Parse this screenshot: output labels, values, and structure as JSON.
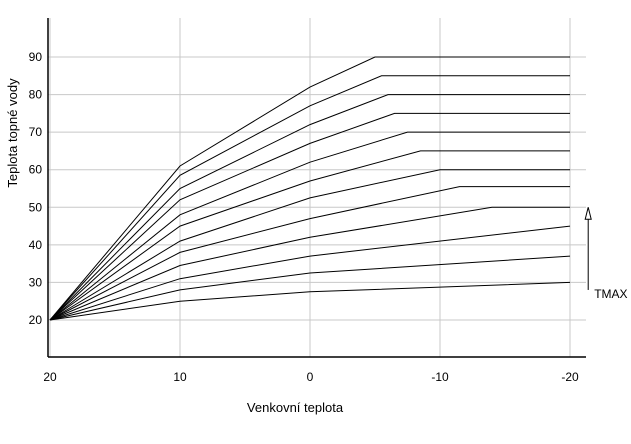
{
  "chart_data": {
    "type": "line",
    "xlabel": "Venkovní teplota",
    "ylabel": "Teplota topné vody",
    "xlim": [
      20,
      -22
    ],
    "ylim": [
      20,
      90
    ],
    "x_ticks": [
      20,
      10,
      0,
      -10,
      -20
    ],
    "y_ticks": [
      20,
      30,
      40,
      50,
      60,
      70,
      80,
      90
    ],
    "x_tick_labels": [
      "20",
      "10",
      "0",
      "-10",
      "-20"
    ],
    "y_tick_labels": [
      "20",
      "30",
      "40",
      "50",
      "60",
      "70",
      "80",
      "90"
    ],
    "grid": "both",
    "line_color": "#000000",
    "grid_color": "#c8c8c8",
    "annotation": {
      "text": "TMAX",
      "arrow_x": -21.4,
      "arrow_from": 28,
      "arrow_to": 50
    },
    "series": [
      {
        "values": [
          [
            20,
            20
          ],
          [
            10,
            25
          ],
          [
            0,
            27.5
          ],
          [
            -20,
            30
          ]
        ]
      },
      {
        "values": [
          [
            20,
            20
          ],
          [
            10,
            28
          ],
          [
            0,
            32.5
          ],
          [
            -20,
            37
          ]
        ]
      },
      {
        "values": [
          [
            20,
            20
          ],
          [
            10,
            31
          ],
          [
            0,
            37
          ],
          [
            -20,
            45
          ]
        ]
      },
      {
        "values": [
          [
            20,
            20
          ],
          [
            10,
            34.5
          ],
          [
            0,
            42
          ],
          [
            -14,
            50
          ],
          [
            -20,
            50
          ]
        ]
      },
      {
        "values": [
          [
            20,
            20
          ],
          [
            10,
            38
          ],
          [
            0,
            47
          ],
          [
            -11.5,
            55.5
          ],
          [
            -20,
            55.5
          ]
        ]
      },
      {
        "values": [
          [
            20,
            20
          ],
          [
            10,
            41
          ],
          [
            0,
            52.5
          ],
          [
            -10,
            60
          ],
          [
            -20,
            60
          ]
        ]
      },
      {
        "values": [
          [
            20,
            20
          ],
          [
            10,
            45
          ],
          [
            0,
            57
          ],
          [
            -8.5,
            65
          ],
          [
            -20,
            65
          ]
        ]
      },
      {
        "values": [
          [
            20,
            20
          ],
          [
            10,
            48
          ],
          [
            0,
            62
          ],
          [
            -7.5,
            70
          ],
          [
            -20,
            70
          ]
        ]
      },
      {
        "values": [
          [
            20,
            20
          ],
          [
            10,
            52
          ],
          [
            0,
            67
          ],
          [
            -6.5,
            75
          ],
          [
            -20,
            75
          ]
        ]
      },
      {
        "values": [
          [
            20,
            20
          ],
          [
            10,
            55
          ],
          [
            0,
            72
          ],
          [
            -6,
            80
          ],
          [
            -20,
            80
          ]
        ]
      },
      {
        "values": [
          [
            20,
            20
          ],
          [
            10,
            58.5
          ],
          [
            0,
            77
          ],
          [
            -5.5,
            85
          ],
          [
            -20,
            85
          ]
        ]
      },
      {
        "values": [
          [
            20,
            20
          ],
          [
            10,
            61
          ],
          [
            0,
            82
          ],
          [
            -5,
            90
          ],
          [
            -20,
            90
          ]
        ]
      }
    ]
  }
}
